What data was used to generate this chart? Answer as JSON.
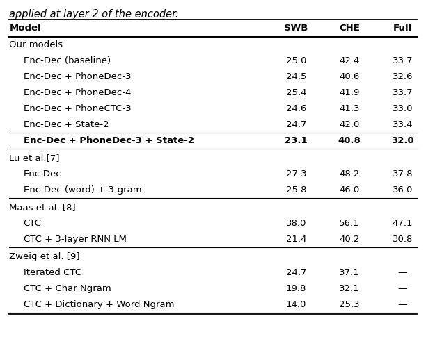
{
  "caption": "applied at layer 2 of the encoder.",
  "col_headers": [
    "Model",
    "SWB",
    "CHE",
    "Full"
  ],
  "sections": [
    {
      "section_header": "Our models",
      "rows": [
        {
          "model": "Enc-Dec (baseline)",
          "swb": "25.0",
          "che": "42.4",
          "full": "33.7",
          "bold": false
        },
        {
          "model": "Enc-Dec + PhoneDec-3",
          "swb": "24.5",
          "che": "40.6",
          "full": "32.6",
          "bold": false
        },
        {
          "model": "Enc-Dec + PhoneDec-4",
          "swb": "25.4",
          "che": "41.9",
          "full": "33.7",
          "bold": false
        },
        {
          "model": "Enc-Dec + PhoneCTC-3",
          "swb": "24.6",
          "che": "41.3",
          "full": "33.0",
          "bold": false
        },
        {
          "model": "Enc-Dec + State-2",
          "swb": "24.7",
          "che": "42.0",
          "full": "33.4",
          "bold": false
        },
        {
          "model": "Enc-Dec + PhoneDec-3 + State-2",
          "swb": "23.1",
          "che": "40.8",
          "full": "32.0",
          "bold": true
        }
      ],
      "hline_before_last": true
    },
    {
      "section_header": "Lu et al.[7]",
      "rows": [
        {
          "model": "Enc-Dec",
          "swb": "27.3",
          "che": "48.2",
          "full": "37.8",
          "bold": false
        },
        {
          "model": "Enc-Dec (word) + 3-gram",
          "swb": "25.8",
          "che": "46.0",
          "full": "36.0",
          "bold": false
        }
      ],
      "hline_before_last": false
    },
    {
      "section_header": "Maas et al. [8]",
      "rows": [
        {
          "model": "CTC",
          "swb": "38.0",
          "che": "56.1",
          "full": "47.1",
          "bold": false
        },
        {
          "model": "CTC + 3-layer RNN LM",
          "swb": "21.4",
          "che": "40.2",
          "full": "30.8",
          "bold": false
        }
      ],
      "hline_before_last": false
    },
    {
      "section_header": "Zweig et al. [9]",
      "rows": [
        {
          "model": "Iterated CTC",
          "swb": "24.7",
          "che": "37.1",
          "full": "—",
          "bold": false
        },
        {
          "model": "CTC + Char Ngram",
          "swb": "19.8",
          "che": "32.1",
          "full": "—",
          "bold": false
        },
        {
          "model": "CTC + Dictionary + Word Ngram",
          "swb": "14.0",
          "che": "25.3",
          "full": "—",
          "bold": false
        }
      ],
      "hline_before_last": false
    }
  ],
  "font_size": 9.5,
  "caption_font_size": 10.5,
  "fig_width": 6.12,
  "fig_height": 4.88,
  "dpi": 100
}
